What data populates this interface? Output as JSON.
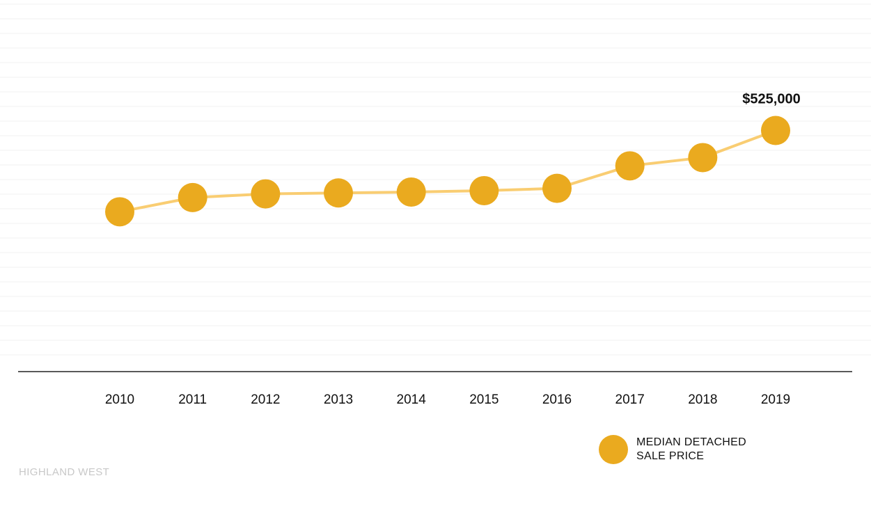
{
  "colors": {
    "marker": "#EAAA1F",
    "line": "#F9CD72",
    "axis": "#222222",
    "grid": "#f2f2f2"
  },
  "chart_data": {
    "type": "line",
    "categories": [
      "2010",
      "2011",
      "2012",
      "2013",
      "2014",
      "2015",
      "2016",
      "2017",
      "2018",
      "2019"
    ],
    "series": [
      {
        "name": "MEDIAN DETACHED SALE PRICE",
        "values": [
          348000,
          379000,
          387000,
          389000,
          391000,
          394000,
          399000,
          448000,
          466000,
          525000
        ]
      }
    ],
    "annotations": [
      {
        "category": "2019",
        "text": "$525,000"
      }
    ],
    "ylim": [
      0,
      800000
    ],
    "grid": true,
    "legend_position": "bottom-right"
  },
  "legend": {
    "line1": "MEDIAN DETACHED",
    "line2": "SALE PRICE"
  },
  "footer": {
    "label": "HIGHLAND WEST"
  }
}
